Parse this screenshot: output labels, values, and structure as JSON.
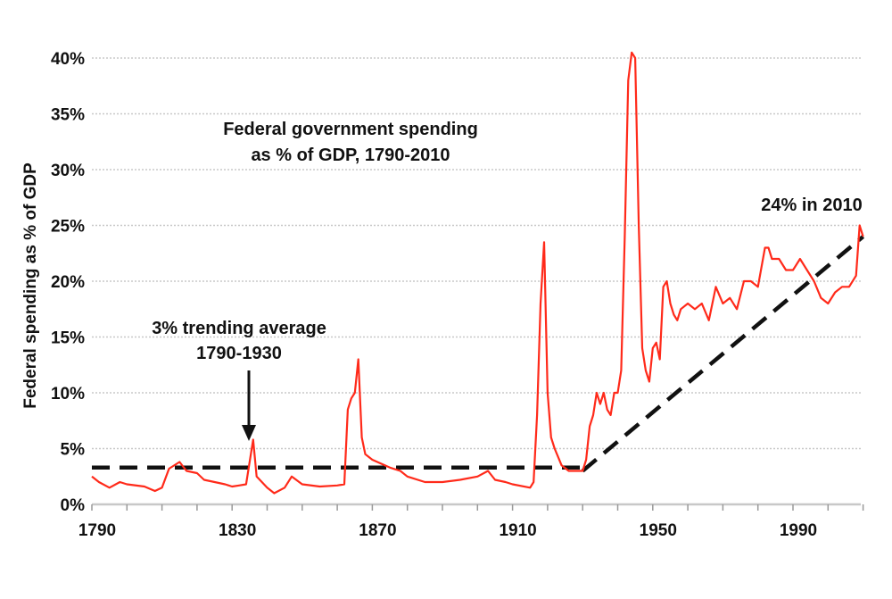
{
  "chart_data": {
    "type": "line",
    "title": "Federal government spending as % of GDP, 1790-2010",
    "title_lines": [
      "Federal government spending",
      "as % of GDP, 1790-2010"
    ],
    "ylabel": "Federal spending as % of GDP",
    "xlabel": "",
    "xlim": [
      1790,
      2010
    ],
    "ylim": [
      0,
      40
    ],
    "x_ticks": [
      1790,
      1830,
      1870,
      1910,
      1950,
      1990
    ],
    "x_tick_labels": [
      "1790",
      "1830",
      "1870",
      "1910",
      "1950",
      "1990"
    ],
    "y_ticks": [
      0,
      5,
      10,
      15,
      20,
      25,
      30,
      35,
      40
    ],
    "y_tick_labels": [
      "0%",
      "5%",
      "10%",
      "15%",
      "20%",
      "25%",
      "30%",
      "35%",
      "40%"
    ],
    "grid": "horizontal dotted",
    "colors": {
      "series": "#ff2a1a",
      "trend": "#111111",
      "grid": "#c8c8c8"
    },
    "series": [
      {
        "x": [
          1790,
          1792,
          1795,
          1798,
          1800,
          1805,
          1808,
          1810,
          1812,
          1815,
          1817,
          1820,
          1822,
          1825,
          1828,
          1830,
          1832,
          1834,
          1836,
          1837,
          1840,
          1842,
          1845,
          1847,
          1850,
          1855,
          1860,
          1862,
          1863,
          1864,
          1865,
          1866,
          1867,
          1868,
          1870,
          1875,
          1878,
          1880,
          1885,
          1890,
          1895,
          1900,
          1903,
          1905,
          1908,
          1910,
          1915,
          1916,
          1917,
          1918,
          1919,
          1920,
          1921,
          1922,
          1924,
          1926,
          1930,
          1931,
          1932,
          1933,
          1934,
          1935,
          1936,
          1937,
          1938,
          1939,
          1940,
          1941,
          1942,
          1943,
          1944,
          1945,
          1946,
          1947,
          1948,
          1949,
          1950,
          1951,
          1952,
          1953,
          1954,
          1955,
          1956,
          1957,
          1958,
          1960,
          1962,
          1964,
          1966,
          1968,
          1970,
          1972,
          1974,
          1976,
          1978,
          1980,
          1982,
          1983,
          1984,
          1986,
          1988,
          1990,
          1992,
          1994,
          1996,
          1998,
          2000,
          2002,
          2004,
          2006,
          2008,
          2009,
          2010
        ],
        "y": [
          2.5,
          2.0,
          1.5,
          2.0,
          1.8,
          1.6,
          1.2,
          1.5,
          3.2,
          3.8,
          3.0,
          2.8,
          2.2,
          2.0,
          1.8,
          1.6,
          1.7,
          1.8,
          5.8,
          2.5,
          1.5,
          1.0,
          1.5,
          2.5,
          1.8,
          1.6,
          1.7,
          1.8,
          8.5,
          9.5,
          10,
          13,
          6,
          4.5,
          4.0,
          3.3,
          3.0,
          2.5,
          2.0,
          2.0,
          2.2,
          2.5,
          3.0,
          2.2,
          2.0,
          1.8,
          1.5,
          2.0,
          8,
          18,
          23.5,
          10,
          6,
          5,
          3.5,
          3,
          3,
          4,
          7,
          8,
          10,
          9,
          10,
          8.5,
          8,
          10,
          10,
          12,
          24,
          38,
          40.5,
          40,
          25,
          14,
          12,
          11,
          14,
          14.5,
          13,
          19.5,
          20,
          18,
          17,
          16.5,
          17.5,
          18,
          17.5,
          18,
          16.5,
          19.5,
          18,
          18.5,
          17.5,
          20,
          20,
          19.5,
          23,
          23,
          22,
          22,
          21,
          21,
          22,
          21,
          20,
          18.5,
          18,
          19,
          19.5,
          19.5,
          20.5,
          25,
          24
        ]
      }
    ],
    "trend_lines": [
      {
        "label": "3% trending average 1790-1930",
        "x": [
          1790,
          1930
        ],
        "y": [
          3.3,
          3.3
        ]
      },
      {
        "x": [
          1930,
          2010
        ],
        "y": [
          3,
          24
        ]
      }
    ],
    "annotations": {
      "trend_lines": [
        "3% trending average",
        "1790-1930"
      ],
      "end_label": "24% in 2010"
    },
    "arrow_target": {
      "x": 1832,
      "y": 5.5
    }
  }
}
